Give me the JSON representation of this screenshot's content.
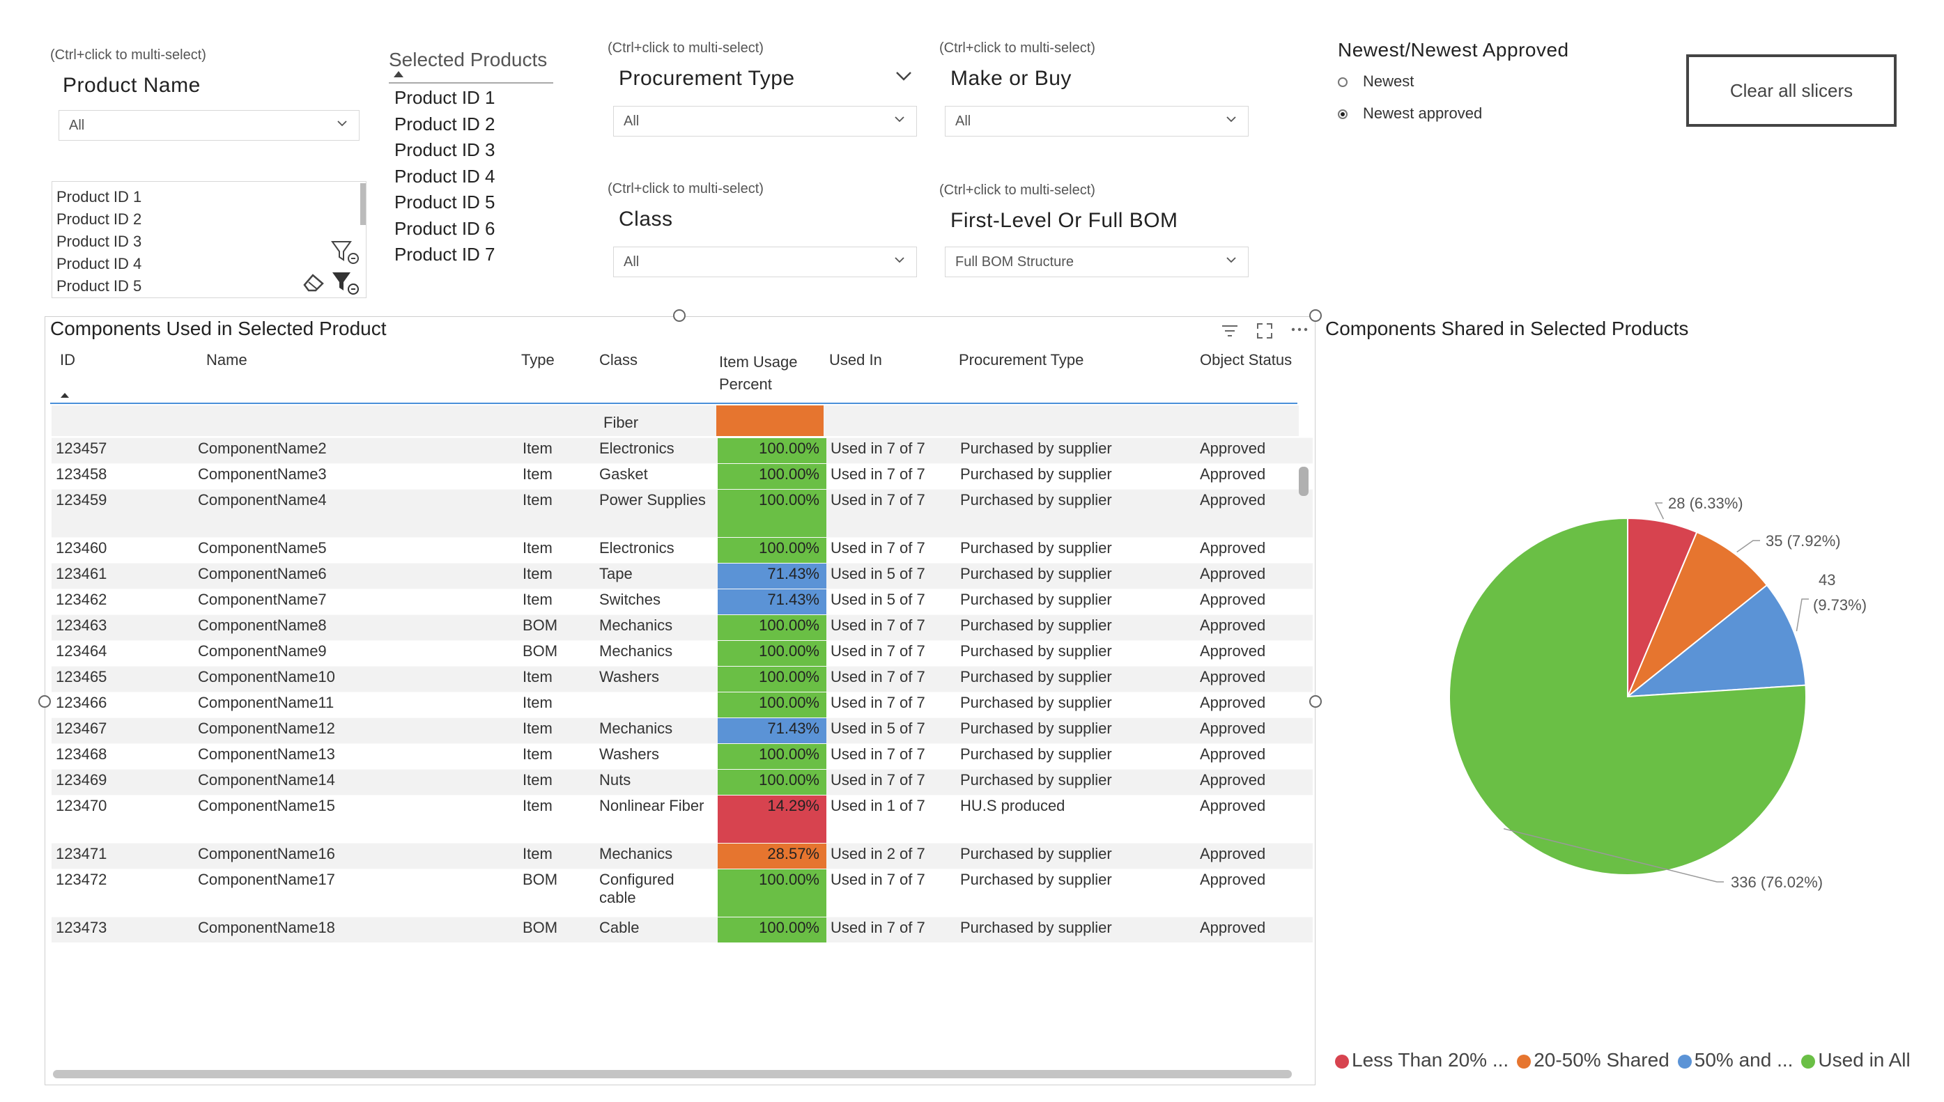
{
  "slicers": {
    "product_name": {
      "hint": "(Ctrl+click to multi-select)",
      "title": "Product Name",
      "dropdown_value": "All",
      "list": [
        "Product ID 1",
        "Product ID 2",
        "Product ID 3",
        "Product ID 4",
        "Product ID 5"
      ]
    },
    "selected_products": {
      "title": "Selected Products",
      "items": [
        "Product ID 1",
        "Product ID 2",
        "Product ID 3",
        "Product ID 4",
        "Product ID 5",
        "Product ID 6",
        "Product ID 7"
      ]
    },
    "procurement_type": {
      "hint": "(Ctrl+click to multi-select)",
      "title": "Procurement Type",
      "value": "All"
    },
    "make_or_buy": {
      "hint": "(Ctrl+click to multi-select)",
      "title": "Make or Buy",
      "value": "All"
    },
    "class": {
      "hint": "(Ctrl+click to multi-select)",
      "title": "Class",
      "value": "All"
    },
    "bom_level": {
      "hint": "(Ctrl+click to multi-select)",
      "title": "First-Level Or Full BOM",
      "value": "Full BOM Structure"
    },
    "newest": {
      "title": "Newest/Newest Approved",
      "options": [
        {
          "label": "Newest",
          "selected": false
        },
        {
          "label": "Newest approved",
          "selected": true
        }
      ]
    },
    "clear_button": "Clear all slicers"
  },
  "table": {
    "title": "Components Used in Selected Product",
    "columns": [
      "ID",
      "Name",
      "Type",
      "Class",
      "Item Usage Percent",
      "Used In",
      "Procurement Type",
      "Object Status"
    ],
    "usage_header": [
      "Item Usage",
      "Percent"
    ],
    "partial_row": {
      "class_tail": "Fiber"
    },
    "rows": [
      {
        "id": "123457",
        "name": "ComponentName2",
        "type": "Item",
        "class": "Electronics",
        "pct": "100.00%",
        "band": "green",
        "used": "Used in 7 of 7",
        "proc": "Purchased by supplier",
        "status": "Approved"
      },
      {
        "id": "123458",
        "name": "ComponentName3",
        "type": "Item",
        "class": "Gasket",
        "pct": "100.00%",
        "band": "green",
        "used": "Used in 7 of 7",
        "proc": "Purchased by supplier",
        "status": "Approved"
      },
      {
        "id": "123459",
        "name": "ComponentName4",
        "type": "Item",
        "class": "Power Supplies",
        "pct": "100.00%",
        "band": "green",
        "used": "Used in 7 of 7",
        "proc": "Purchased by supplier",
        "status": "Approved"
      },
      {
        "id": "123460",
        "name": "ComponentName5",
        "type": "Item",
        "class": "Electronics",
        "pct": "100.00%",
        "band": "green",
        "used": "Used in 7 of 7",
        "proc": "Purchased by supplier",
        "status": "Approved"
      },
      {
        "id": "123461",
        "name": "ComponentName6",
        "type": "Item",
        "class": "Tape",
        "pct": "71.43%",
        "band": "blue",
        "used": "Used in 5 of 7",
        "proc": "Purchased by supplier",
        "status": "Approved"
      },
      {
        "id": "123462",
        "name": "ComponentName7",
        "type": "Item",
        "class": "Switches",
        "pct": "71.43%",
        "band": "blue",
        "used": "Used in 5 of 7",
        "proc": "Purchased by supplier",
        "status": "Approved"
      },
      {
        "id": "123463",
        "name": "ComponentName8",
        "type": "BOM",
        "class": "Mechanics",
        "pct": "100.00%",
        "band": "green",
        "used": "Used in 7 of 7",
        "proc": "Purchased by supplier",
        "status": "Approved"
      },
      {
        "id": "123464",
        "name": "ComponentName9",
        "type": "BOM",
        "class": "Mechanics",
        "pct": "100.00%",
        "band": "green",
        "used": "Used in 7 of 7",
        "proc": "Purchased by supplier",
        "status": "Approved"
      },
      {
        "id": "123465",
        "name": "ComponentName10",
        "type": "Item",
        "class": "Washers",
        "pct": "100.00%",
        "band": "green",
        "used": "Used in 7 of 7",
        "proc": "Purchased by supplier",
        "status": "Approved"
      },
      {
        "id": "123466",
        "name": "ComponentName11",
        "type": "Item",
        "class": "",
        "pct": "100.00%",
        "band": "green",
        "used": "Used in 7 of 7",
        "proc": "Purchased by supplier",
        "status": "Approved"
      },
      {
        "id": "123467",
        "name": "ComponentName12",
        "type": "Item",
        "class": "Mechanics",
        "pct": "71.43%",
        "band": "blue",
        "used": "Used in 5 of 7",
        "proc": "Purchased by supplier",
        "status": "Approved"
      },
      {
        "id": "123468",
        "name": "ComponentName13",
        "type": "Item",
        "class": "Washers",
        "pct": "100.00%",
        "band": "green",
        "used": "Used in 7 of 7",
        "proc": "Purchased by supplier",
        "status": "Approved"
      },
      {
        "id": "123469",
        "name": "ComponentName14",
        "type": "Item",
        "class": "Nuts",
        "pct": "100.00%",
        "band": "green",
        "used": "Used in 7 of 7",
        "proc": "Purchased by supplier",
        "status": "Approved"
      },
      {
        "id": "123470",
        "name": "ComponentName15",
        "type": "Item",
        "class": "Nonlinear Fiber",
        "pct": "14.29%",
        "band": "red",
        "used": "Used in 1 of 7",
        "proc": "HU.S produced",
        "status": "Approved"
      },
      {
        "id": "123471",
        "name": "ComponentName16",
        "type": "Item",
        "class": "Mechanics",
        "pct": "28.57%",
        "band": "orange",
        "used": "Used in 2 of 7",
        "proc": "Purchased by supplier",
        "status": "Approved"
      },
      {
        "id": "123472",
        "name": "ComponentName17",
        "type": "BOM",
        "class": "Configured cable",
        "pct": "100.00%",
        "band": "green",
        "used": "Used in 7 of 7",
        "proc": "Purchased by supplier",
        "status": "Approved"
      },
      {
        "id": "123473",
        "name": "ComponentName18",
        "type": "BOM",
        "class": "Cable",
        "pct": "100.00%",
        "band": "green",
        "used": "Used in 7 of 7",
        "proc": "Purchased by supplier",
        "status": "Approved"
      }
    ]
  },
  "colors": {
    "green": "#6abf45",
    "blue": "#5b93d6",
    "red": "#d7434f",
    "orange": "#e6752f"
  },
  "pie": {
    "title": "Components Shared in Selected Products",
    "legend": [
      "Less Than 20% ...",
      "20-50% Shared",
      "50% and ...",
      "Used in All"
    ]
  },
  "chart_data": {
    "type": "pie",
    "title": "Components Shared in Selected Products",
    "slices": [
      {
        "label": "Less Than 20% ...",
        "value": 28,
        "percent": 6.33,
        "data_label": "28 (6.33%)",
        "color": "#d7434f"
      },
      {
        "label": "20-50% Shared",
        "value": 35,
        "percent": 7.92,
        "data_label": "35 (7.92%)",
        "color": "#e6752f"
      },
      {
        "label": "50% and ...",
        "value": 43,
        "percent": 9.73,
        "data_label": "43 (9.73%)",
        "color": "#5b93d6"
      },
      {
        "label": "Used in All",
        "value": 336,
        "percent": 76.02,
        "data_label": "336 (76.02%)",
        "color": "#6abf45"
      }
    ],
    "legend_position": "bottom"
  }
}
